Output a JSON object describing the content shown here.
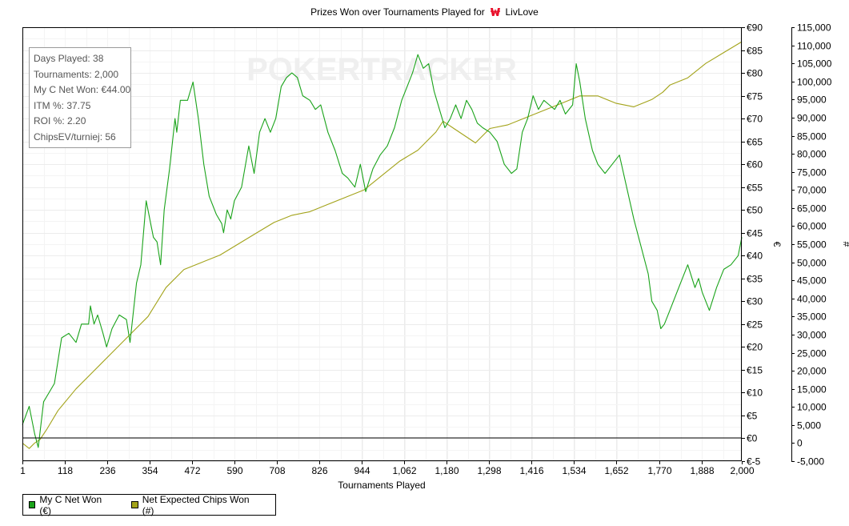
{
  "chart_data": {
    "type": "line",
    "title_prefix": "Prizes Won over Tournaments Played for",
    "title_player": "LivLove",
    "xlabel": "Tournaments Played",
    "ylabel_left": "€",
    "ylabel_right": "#",
    "xlim": [
      1,
      2000
    ],
    "ylim_left": [
      -5,
      90
    ],
    "ylim_right": [
      -5000,
      115000
    ],
    "x_ticks": [
      "1",
      "118",
      "236",
      "354",
      "472",
      "590",
      "708",
      "826",
      "944",
      "1,062",
      "1,180",
      "1,298",
      "1,416",
      "1,534",
      "1,652",
      "1,770",
      "1,888",
      "2,000"
    ],
    "y_left_ticks": [
      "€90",
      "€85",
      "€80",
      "€75",
      "€70",
      "€65",
      "€60",
      "€55",
      "€50",
      "€45",
      "€40",
      "€35",
      "€30",
      "€25",
      "€20",
      "€15",
      "€10",
      "€5",
      "€0",
      "€-5"
    ],
    "y_right_ticks": [
      "115,000",
      "110,000",
      "105,000",
      "100,000",
      "95,000",
      "90,000",
      "85,000",
      "80,000",
      "75,000",
      "70,000",
      "65,000",
      "60,000",
      "55,000",
      "50,000",
      "45,000",
      "40,000",
      "35,000",
      "30,000",
      "25,000",
      "20,000",
      "15,000",
      "10,000",
      "5,000",
      "0",
      "-5,000"
    ],
    "grid": true,
    "legend_placement": "bottom-left",
    "watermark": "POKERTRACKER",
    "series": [
      {
        "name": "My C Net Won (€)",
        "axis": "left",
        "color": "#1aa31a",
        "x": [
          1,
          20,
          35,
          45,
          60,
          75,
          90,
          110,
          130,
          150,
          165,
          185,
          190,
          200,
          210,
          225,
          235,
          250,
          270,
          290,
          300,
          318,
          330,
          345,
          355,
          365,
          375,
          385,
          395,
          410,
          425,
          430,
          440,
          460,
          475,
          490,
          505,
          520,
          540,
          555,
          560,
          570,
          580,
          590,
          610,
          630,
          645,
          660,
          675,
          690,
          705,
          720,
          735,
          750,
          765,
          780,
          800,
          815,
          830,
          850,
          870,
          890,
          905,
          925,
          940,
          955,
          975,
          995,
          1015,
          1035,
          1055,
          1070,
          1085,
          1100,
          1115,
          1130,
          1145,
          1160,
          1175,
          1190,
          1205,
          1220,
          1235,
          1250,
          1265,
          1280,
          1300,
          1320,
          1340,
          1360,
          1375,
          1390,
          1405,
          1420,
          1435,
          1450,
          1465,
          1480,
          1495,
          1510,
          1530,
          1540,
          1550,
          1565,
          1585,
          1600,
          1620,
          1640,
          1660,
          1680,
          1700,
          1720,
          1740,
          1750,
          1765,
          1775,
          1785,
          1800,
          1820,
          1840,
          1850,
          1870,
          1880,
          1890,
          1910,
          1930,
          1950,
          1970,
          1990,
          2000
        ],
        "y": [
          3,
          7,
          1,
          -2,
          8,
          10,
          12,
          22,
          23,
          21,
          25,
          25,
          29,
          25,
          27,
          23,
          20,
          24,
          27,
          26,
          21,
          34,
          38,
          52,
          48,
          44,
          43,
          38,
          50,
          59,
          70,
          67,
          74,
          74,
          78,
          70,
          60,
          53,
          49,
          47,
          45,
          50,
          48,
          52,
          55,
          64,
          58,
          67,
          70,
          67,
          70,
          77,
          79,
          80,
          79,
          75,
          74,
          72,
          73,
          67,
          63,
          58,
          57,
          55,
          60,
          54,
          59,
          62,
          64,
          68,
          74,
          77,
          80,
          84,
          81,
          82,
          76,
          72,
          68,
          70,
          73,
          70,
          74,
          72,
          69,
          68,
          67,
          65,
          60,
          58,
          59,
          67,
          70,
          75,
          72,
          74,
          73,
          72,
          74,
          71,
          73,
          82,
          78,
          70,
          63,
          60,
          58,
          60,
          62,
          55,
          48,
          42,
          36,
          30,
          28,
          24,
          25,
          28,
          32,
          36,
          38,
          33,
          35,
          32,
          28,
          33,
          37,
          38,
          40,
          44
        ]
      },
      {
        "name": "Net Expected Chips Won (#)",
        "axis": "right",
        "color": "#a3a31a",
        "x": [
          1,
          20,
          35,
          50,
          70,
          100,
          150,
          200,
          250,
          300,
          350,
          400,
          450,
          500,
          550,
          600,
          650,
          700,
          750,
          800,
          850,
          900,
          950,
          1000,
          1050,
          1100,
          1150,
          1170,
          1200,
          1230,
          1260,
          1300,
          1350,
          1400,
          1450,
          1500,
          1550,
          1600,
          1650,
          1700,
          1750,
          1780,
          1800,
          1850,
          1900,
          1950,
          2000
        ],
        "y": [
          0,
          -1500,
          0,
          1000,
          4000,
          9000,
          15000,
          20000,
          25000,
          30000,
          35000,
          43000,
          48000,
          50000,
          52000,
          55000,
          58000,
          61000,
          63000,
          64000,
          66000,
          68000,
          70000,
          74000,
          78000,
          81000,
          86000,
          89000,
          87000,
          85000,
          83000,
          87000,
          88000,
          90000,
          92000,
          94000,
          96000,
          96000,
          94000,
          93000,
          95000,
          97000,
          99000,
          101000,
          105000,
          108000,
          111000
        ]
      }
    ]
  },
  "stats": {
    "days_played": "Days Played: 38",
    "tournaments": "Tournaments: 2,000",
    "net_won": "My C Net Won: €44.00",
    "itm": "ITM %: 37.75",
    "roi": "ROI %: 2.20",
    "chips_ev": "ChipsEV/turniej: 56"
  },
  "legend": {
    "green_label": "My C Net Won (€)",
    "olive_label": "Net Expected Chips Won (#)",
    "green_color": "#1aa31a",
    "olive_color": "#a3a31a"
  },
  "icons": {
    "site_logo": "w-logo-icon"
  }
}
